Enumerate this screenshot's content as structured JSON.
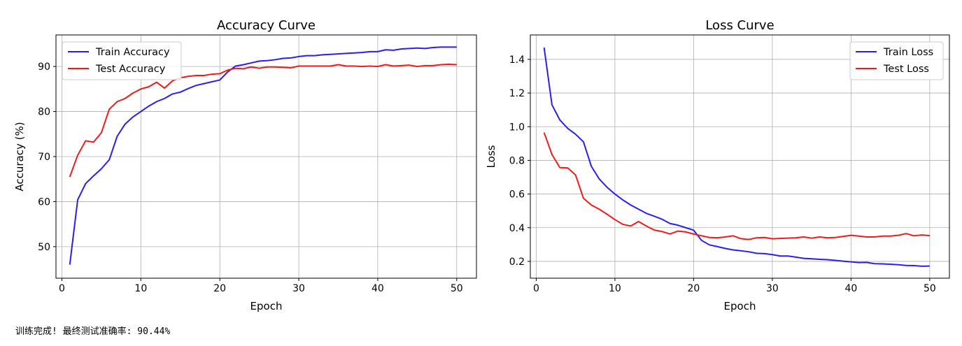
{
  "chart_data": [
    {
      "type": "line",
      "title": "Accuracy Curve",
      "xlabel": "Epoch",
      "ylabel": "Accuracy (%)",
      "xlim": [
        -0.75,
        52.5
      ],
      "ylim": [
        43.0,
        97.0
      ],
      "xticks": [
        0,
        10,
        20,
        30,
        40,
        50
      ],
      "yticks": [
        50,
        60,
        70,
        80,
        90
      ],
      "grid": true,
      "legend_position": "upper left",
      "x": [
        1,
        2,
        3,
        4,
        5,
        6,
        7,
        8,
        9,
        10,
        11,
        12,
        13,
        14,
        15,
        16,
        17,
        18,
        19,
        20,
        21,
        22,
        23,
        24,
        25,
        26,
        27,
        28,
        29,
        30,
        31,
        32,
        33,
        34,
        35,
        36,
        37,
        38,
        39,
        40,
        41,
        42,
        43,
        44,
        45,
        46,
        47,
        48,
        49,
        50
      ],
      "series": [
        {
          "name": "Train Accuracy",
          "color": "#2a1ff0",
          "values": [
            46.0,
            60.4,
            64.0,
            65.7,
            67.3,
            69.3,
            74.5,
            77.2,
            78.8,
            80.0,
            81.2,
            82.2,
            82.9,
            83.9,
            84.3,
            85.1,
            85.8,
            86.2,
            86.6,
            87.0,
            88.8,
            90.1,
            90.4,
            90.8,
            91.2,
            91.3,
            91.5,
            91.8,
            91.9,
            92.2,
            92.4,
            92.4,
            92.6,
            92.7,
            92.8,
            92.9,
            93.0,
            93.1,
            93.3,
            93.3,
            93.7,
            93.6,
            93.9,
            94.0,
            94.1,
            94.0,
            94.2,
            94.3,
            94.3,
            94.3
          ]
        },
        {
          "name": "Test Accuracy",
          "color": "#ee1c1c",
          "values": [
            65.5,
            70.3,
            73.5,
            73.2,
            75.3,
            80.5,
            82.2,
            82.9,
            84.1,
            85.0,
            85.5,
            86.5,
            85.2,
            86.8,
            87.5,
            87.8,
            88.0,
            88.0,
            88.3,
            88.4,
            89.2,
            89.6,
            89.5,
            89.9,
            89.6,
            89.9,
            89.9,
            89.8,
            89.7,
            90.1,
            90.1,
            90.1,
            90.1,
            90.1,
            90.4,
            90.1,
            90.1,
            90.0,
            90.1,
            90.0,
            90.4,
            90.1,
            90.2,
            90.3,
            90.0,
            90.2,
            90.2,
            90.4,
            90.5,
            90.4
          ]
        }
      ]
    },
    {
      "type": "line",
      "title": "Loss Curve",
      "xlabel": "Epoch",
      "ylabel": "Loss",
      "xlim": [
        -0.75,
        52.5
      ],
      "ylim": [
        0.1,
        1.545
      ],
      "xticks": [
        0,
        10,
        20,
        30,
        40,
        50
      ],
      "yticks": [
        0.2,
        0.4,
        0.6,
        0.8,
        1.0,
        1.2,
        1.4
      ],
      "ytick_labels": [
        "0.2",
        "0.4",
        "0.6",
        "0.8",
        "1.0",
        "1.2",
        "1.4"
      ],
      "grid": true,
      "legend_position": "upper right",
      "x": [
        1,
        2,
        3,
        4,
        5,
        6,
        7,
        8,
        9,
        10,
        11,
        12,
        13,
        14,
        15,
        16,
        17,
        18,
        19,
        20,
        21,
        22,
        23,
        24,
        25,
        26,
        27,
        28,
        29,
        30,
        31,
        32,
        33,
        34,
        35,
        36,
        37,
        38,
        39,
        40,
        41,
        42,
        43,
        44,
        45,
        46,
        47,
        48,
        49,
        50
      ],
      "series": [
        {
          "name": "Train Loss",
          "color": "#2a1ff0",
          "values": [
            1.47,
            1.13,
            1.04,
            0.99,
            0.955,
            0.91,
            0.765,
            0.69,
            0.64,
            0.6,
            0.565,
            0.535,
            0.51,
            0.485,
            0.468,
            0.45,
            0.425,
            0.415,
            0.4,
            0.385,
            0.325,
            0.298,
            0.288,
            0.277,
            0.268,
            0.263,
            0.257,
            0.248,
            0.246,
            0.24,
            0.232,
            0.232,
            0.225,
            0.218,
            0.215,
            0.212,
            0.21,
            0.206,
            0.201,
            0.197,
            0.193,
            0.194,
            0.186,
            0.185,
            0.183,
            0.18,
            0.176,
            0.175,
            0.171,
            0.172
          ]
        },
        {
          "name": "Test Loss",
          "color": "#ee1c1c",
          "values": [
            0.965,
            0.835,
            0.757,
            0.755,
            0.713,
            0.575,
            0.535,
            0.51,
            0.48,
            0.448,
            0.42,
            0.41,
            0.437,
            0.41,
            0.386,
            0.377,
            0.363,
            0.38,
            0.375,
            0.362,
            0.352,
            0.342,
            0.34,
            0.345,
            0.352,
            0.335,
            0.33,
            0.34,
            0.342,
            0.334,
            0.336,
            0.338,
            0.34,
            0.345,
            0.338,
            0.345,
            0.34,
            0.342,
            0.348,
            0.355,
            0.35,
            0.345,
            0.345,
            0.35,
            0.35,
            0.355,
            0.365,
            0.352,
            0.357,
            0.353
          ]
        }
      ]
    }
  ],
  "status": {
    "text": "训练完成! 最终测试准确率: 90.44%"
  }
}
